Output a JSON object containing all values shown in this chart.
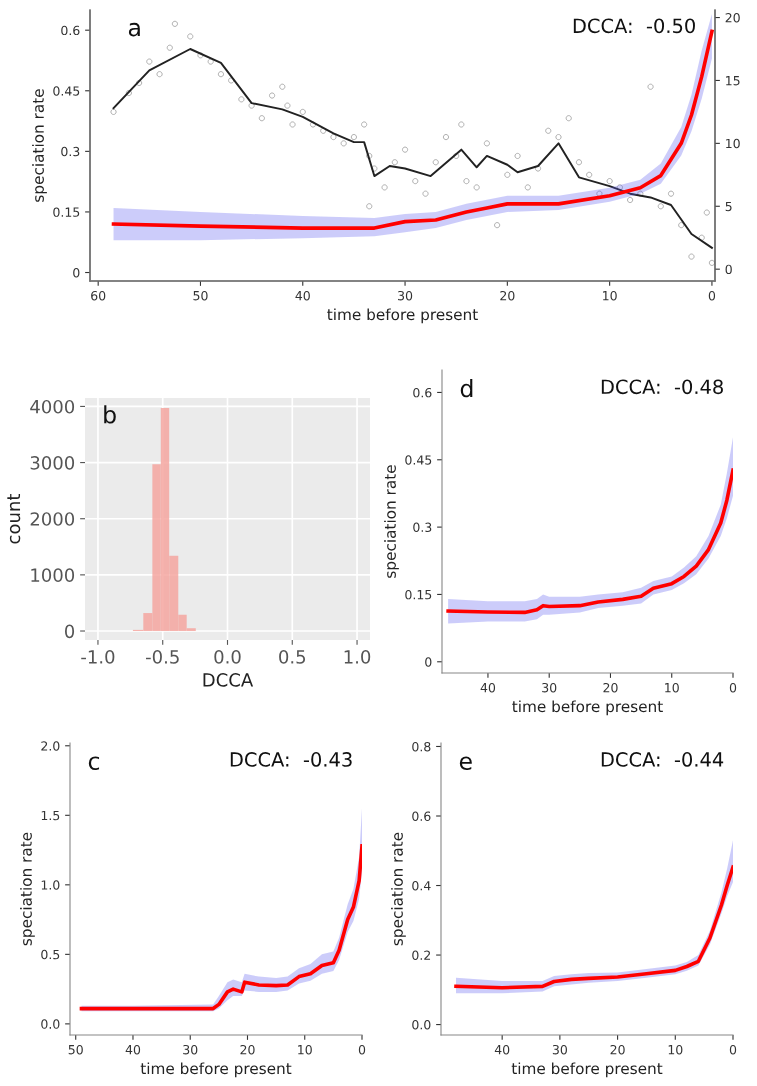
{
  "chart_data": [
    {
      "type": "line",
      "xlabel": "time before present",
      "ylabel": "speciation rate",
      "annotations": [
        "a",
        "DCCA:  -0.50"
      ],
      "xlim": [
        60.8,
        -0.3
      ],
      "xticks": [
        60,
        50,
        40,
        30,
        20,
        10,
        0
      ],
      "ylim": [
        -0.021,
        0.65
      ],
      "yticks": [
        0,
        0.15,
        0.3,
        0.45,
        0.6
      ],
      "y2lim": [
        -0.94,
        20.6
      ],
      "y2ticks": [
        0,
        5,
        10,
        15,
        20
      ],
      "grid": false,
      "series": [
        {
          "type": "scatter",
          "axis": "y2",
          "color": "#aaaaaa",
          "marker": "circle",
          "x": [
            58.5,
            57,
            56,
            55,
            54,
            53,
            52.5,
            51,
            50,
            49,
            48,
            47,
            46,
            45,
            44,
            43,
            42,
            41.5,
            41,
            40,
            39,
            38,
            37,
            36,
            35,
            34,
            33.5,
            33.5,
            33,
            32,
            31,
            30,
            29,
            28,
            27,
            26,
            25,
            24.5,
            24,
            23,
            22,
            21,
            20,
            19,
            18,
            17,
            16,
            15,
            14,
            13,
            12,
            11,
            10,
            9,
            8,
            7,
            6,
            5,
            4,
            3,
            2,
            1,
            0.5,
            0
          ],
          "values": [
            12.5,
            14,
            14.8,
            16.5,
            15.5,
            17.6,
            19.5,
            18.5,
            17,
            16.5,
            15.5,
            15,
            13.5,
            13,
            12,
            13.8,
            14.5,
            13,
            11.5,
            12.5,
            11.5,
            11,
            10.5,
            10,
            10.5,
            11.5,
            9,
            5,
            8,
            6.5,
            8.5,
            9.5,
            7,
            6,
            8.5,
            10.5,
            9,
            11.5,
            7,
            6.5,
            10,
            3.5,
            7.5,
            9,
            6.5,
            8,
            11,
            10.5,
            12,
            8.5,
            7.5,
            6,
            7,
            6.5,
            5.5,
            6,
            14.5,
            5,
            6,
            3.5,
            1,
            2.5,
            4.5,
            0.5
          ]
        },
        {
          "type": "line",
          "axis": "y2",
          "color": "#222222",
          "x": [
            58.5,
            55,
            51,
            48,
            45,
            42,
            40,
            37,
            35,
            34,
            33,
            31.5,
            30,
            27.5,
            24.5,
            23,
            22,
            20,
            19,
            17,
            15,
            13,
            10,
            8,
            6,
            4,
            2,
            0
          ],
          "values": [
            12.8,
            15.8,
            17.5,
            16.4,
            13.2,
            12.7,
            12.1,
            10.8,
            10.1,
            10.1,
            7.4,
            8.2,
            8.0,
            7.4,
            9.5,
            8.1,
            9.0,
            8.3,
            7.7,
            8.2,
            10.0,
            7.3,
            6.6,
            6.0,
            5.7,
            5.1,
            2.8,
            1.7
          ]
        },
        {
          "type": "line",
          "color": "#ff0000",
          "x": [
            58.5,
            50,
            40,
            33,
            30,
            27,
            24,
            22,
            20,
            15,
            10,
            7,
            5,
            3,
            2,
            1,
            0
          ],
          "values": [
            0.12,
            0.115,
            0.11,
            0.11,
            0.126,
            0.13,
            0.15,
            0.16,
            0.17,
            0.17,
            0.19,
            0.21,
            0.24,
            0.32,
            0.39,
            0.485,
            0.597
          ],
          "lower": [
            0.08,
            0.08,
            0.085,
            0.09,
            0.1,
            0.11,
            0.13,
            0.14,
            0.15,
            0.155,
            0.175,
            0.195,
            0.22,
            0.29,
            0.35,
            0.43,
            0.53
          ],
          "upper": [
            0.16,
            0.15,
            0.14,
            0.135,
            0.145,
            0.15,
            0.17,
            0.18,
            0.19,
            0.19,
            0.21,
            0.23,
            0.27,
            0.36,
            0.44,
            0.55,
            0.64
          ]
        }
      ]
    },
    {
      "type": "histogram",
      "xlabel": "DCCA",
      "ylabel": "count",
      "annotations": [
        "b"
      ],
      "color": "#f4a6a0",
      "bins": [
        -0.73,
        -0.65,
        -0.58,
        -0.515,
        -0.45,
        -0.38,
        -0.315,
        -0.245
      ],
      "values": [
        20,
        320,
        2970,
        3970,
        1340,
        290,
        50
      ],
      "xlim": [
        -1.1,
        1.1
      ],
      "xticks": [
        {
          "value": -1.0,
          "label": "-1.0"
        },
        {
          "value": -0.5,
          "label": "-0.5"
        },
        {
          "value": 0.0,
          "label": "0.0"
        },
        {
          "value": 0.5,
          "label": "0.5"
        },
        {
          "value": 1.0,
          "label": "1.0"
        }
      ],
      "ylim": [
        -160,
        4150
      ],
      "yticks": [
        0,
        1000,
        2000,
        3000,
        4000
      ],
      "grid": true
    },
    {
      "type": "line",
      "xlabel": "time before present",
      "ylabel": "speciation rate",
      "annotations": [
        "d",
        "DCCA:  -0.48"
      ],
      "xlim": [
        47.5,
        0
      ],
      "xticks": [
        40,
        30,
        20,
        10,
        0
      ],
      "ylim": [
        -0.025,
        0.65
      ],
      "yticks": [
        0,
        0.15,
        0.3,
        0.45,
        0.6
      ],
      "grid": false,
      "series": [
        {
          "type": "line",
          "color": "#ff0000",
          "x": [
            46.5,
            40,
            34,
            32,
            31,
            30,
            25,
            22,
            18,
            15,
            13,
            10,
            8,
            6,
            4,
            2,
            1,
            0
          ],
          "values": [
            0.113,
            0.111,
            0.11,
            0.116,
            0.125,
            0.123,
            0.125,
            0.133,
            0.139,
            0.146,
            0.164,
            0.174,
            0.19,
            0.213,
            0.25,
            0.309,
            0.36,
            0.427
          ],
          "lower": [
            0.085,
            0.09,
            0.09,
            0.095,
            0.105,
            0.105,
            0.11,
            0.12,
            0.125,
            0.13,
            0.15,
            0.16,
            0.175,
            0.195,
            0.23,
            0.28,
            0.32,
            0.37
          ],
          "upper": [
            0.14,
            0.135,
            0.135,
            0.14,
            0.15,
            0.145,
            0.145,
            0.15,
            0.155,
            0.165,
            0.18,
            0.19,
            0.21,
            0.235,
            0.28,
            0.35,
            0.42,
            0.5
          ]
        }
      ]
    },
    {
      "type": "line",
      "xlabel": "time before present",
      "ylabel": "speciation rate",
      "annotations": [
        "c",
        "DCCA:  -0.43"
      ],
      "xlim": [
        51,
        0
      ],
      "xticks": [
        50,
        40,
        30,
        20,
        10,
        0
      ],
      "ylim": [
        -0.08,
        2.02
      ],
      "yticks": [
        {
          "value": 0,
          "label": "0.0"
        },
        {
          "value": 0.5,
          "label": "0.5"
        },
        {
          "value": 1.0,
          "label": "1.0"
        },
        {
          "value": 1.5,
          "label": "1.5"
        },
        {
          "value": 2.0,
          "label": "2.0"
        }
      ],
      "grid": false,
      "series": [
        {
          "type": "line",
          "color": "#ff0000",
          "x": [
            49,
            40,
            26,
            25,
            23.5,
            22.5,
            21,
            20.5,
            18,
            15,
            13,
            11,
            9,
            7,
            5,
            4,
            2.5,
            1.5,
            0.5,
            0
          ],
          "values": [
            0.11,
            0.11,
            0.11,
            0.14,
            0.23,
            0.25,
            0.23,
            0.3,
            0.28,
            0.275,
            0.28,
            0.34,
            0.36,
            0.42,
            0.44,
            0.53,
            0.75,
            0.84,
            1.03,
            1.28
          ],
          "lower": [
            0.09,
            0.09,
            0.09,
            0.11,
            0.17,
            0.2,
            0.2,
            0.24,
            0.23,
            0.23,
            0.24,
            0.29,
            0.31,
            0.36,
            0.38,
            0.46,
            0.66,
            0.74,
            0.9,
            1.1
          ],
          "upper": [
            0.13,
            0.13,
            0.14,
            0.2,
            0.3,
            0.32,
            0.3,
            0.36,
            0.34,
            0.33,
            0.34,
            0.4,
            0.43,
            0.5,
            0.52,
            0.62,
            0.86,
            0.97,
            1.2,
            1.55
          ]
        }
      ]
    },
    {
      "type": "line",
      "xlabel": "time before present",
      "ylabel": "speciation rate",
      "annotations": [
        "e",
        "DCCA:  -0.44"
      ],
      "xlim": [
        50.6,
        0
      ],
      "xticks": [
        40,
        30,
        20,
        10,
        0
      ],
      "ylim": [
        -0.03,
        0.81
      ],
      "yticks": [
        {
          "value": 0,
          "label": "0.0"
        },
        {
          "value": 0.2,
          "label": "0.2"
        },
        {
          "value": 0.4,
          "label": "0.4"
        },
        {
          "value": 0.6,
          "label": "0.6"
        },
        {
          "value": 0.8,
          "label": "0.8"
        }
      ],
      "grid": false,
      "series": [
        {
          "type": "line",
          "color": "#ff0000",
          "x": [
            48,
            40,
            33,
            31,
            28,
            25,
            20,
            15,
            10,
            8,
            6,
            4,
            2,
            1,
            0
          ],
          "values": [
            0.11,
            0.106,
            0.11,
            0.124,
            0.13,
            0.133,
            0.137,
            0.146,
            0.156,
            0.167,
            0.182,
            0.249,
            0.344,
            0.401,
            0.453
          ],
          "lower": [
            0.09,
            0.09,
            0.095,
            0.11,
            0.115,
            0.12,
            0.125,
            0.135,
            0.145,
            0.155,
            0.17,
            0.23,
            0.32,
            0.37,
            0.41
          ],
          "upper": [
            0.135,
            0.125,
            0.125,
            0.14,
            0.145,
            0.148,
            0.15,
            0.16,
            0.17,
            0.18,
            0.2,
            0.27,
            0.38,
            0.45,
            0.53
          ]
        }
      ]
    }
  ]
}
